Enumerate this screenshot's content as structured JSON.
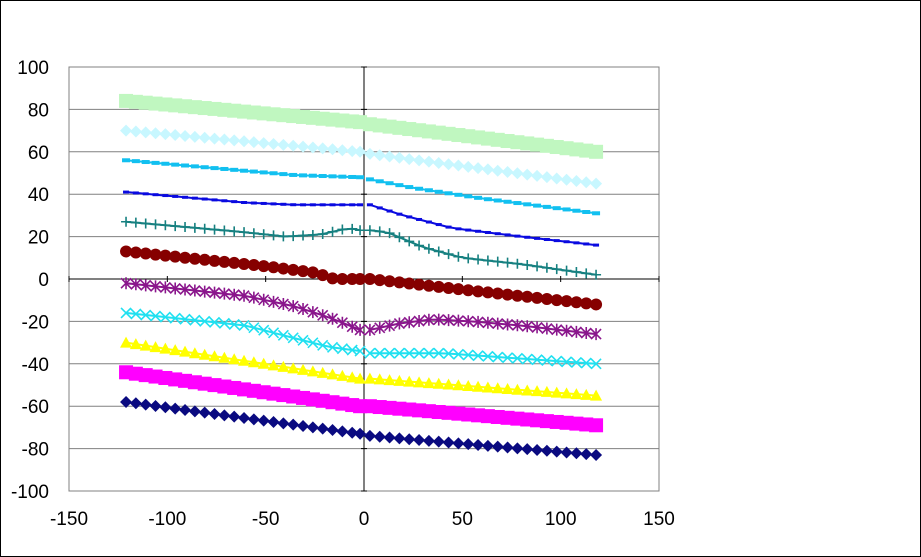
{
  "chart_data": {
    "type": "scatter",
    "title": "",
    "xlabel": "",
    "ylabel": "",
    "xlim": [
      -150,
      150
    ],
    "ylim": [
      -100,
      100
    ],
    "x_ticks": [
      "-150",
      "-100",
      "-50",
      "0",
      "50",
      "100",
      "150"
    ],
    "y_ticks": [
      "100",
      "80",
      "60",
      "40",
      "20",
      "0",
      "-20",
      "-40",
      "-60",
      "-80",
      "-100"
    ],
    "grid": {
      "horizontal": true,
      "vertical": false
    },
    "legend": "none",
    "series": [
      {
        "color": "#c0f7c0",
        "marker": "square-large",
        "left": [
          [
            -121,
            84
          ],
          [
            -2,
            74
          ]
        ],
        "right": [
          [
            3,
            73
          ],
          [
            118,
            60
          ]
        ]
      },
      {
        "color": "#c8f7ff",
        "marker": "diamond",
        "left": [
          [
            -121,
            70
          ],
          [
            -2,
            60
          ]
        ],
        "right": [
          [
            3,
            59
          ],
          [
            118,
            45
          ]
        ]
      },
      {
        "color": "#12c0f0",
        "marker": "dash",
        "left": [
          [
            -121,
            56
          ],
          [
            -60,
            51
          ],
          [
            -35,
            49
          ],
          [
            -2,
            48
          ]
        ],
        "right": [
          [
            3,
            47
          ],
          [
            25,
            43
          ],
          [
            60,
            38
          ],
          [
            118,
            31
          ]
        ]
      },
      {
        "color": "#0a0ae0",
        "marker": "small-dash",
        "left": [
          [
            -121,
            41
          ],
          [
            -60,
            36
          ],
          [
            -35,
            35
          ],
          [
            -2,
            35
          ]
        ],
        "right": [
          [
            3,
            35
          ],
          [
            20,
            30
          ],
          [
            45,
            24
          ],
          [
            80,
            20
          ],
          [
            118,
            16
          ]
        ]
      },
      {
        "color": "#168080",
        "marker": "plus",
        "left": [
          [
            -121,
            27
          ],
          [
            -60,
            22
          ],
          [
            -40,
            20
          ],
          [
            -22,
            21
          ],
          [
            -8,
            24
          ],
          [
            -2,
            23
          ]
        ],
        "right": [
          [
            3,
            23
          ],
          [
            12,
            22
          ],
          [
            30,
            15
          ],
          [
            50,
            10
          ],
          [
            80,
            7
          ],
          [
            118,
            2
          ]
        ]
      },
      {
        "color": "#860000",
        "marker": "circle",
        "left": [
          [
            -121,
            13
          ],
          [
            -50,
            6
          ],
          [
            -25,
            3
          ],
          [
            -15,
            0
          ],
          [
            -2,
            0
          ]
        ],
        "right": [
          [
            3,
            0
          ],
          [
            50,
            -5
          ],
          [
            118,
            -12
          ]
        ]
      },
      {
        "color": "#8a168c",
        "marker": "asterisk",
        "left": [
          [
            -121,
            -2
          ],
          [
            -60,
            -8
          ],
          [
            -35,
            -13
          ],
          [
            -18,
            -18
          ],
          [
            -2,
            -24
          ]
        ],
        "right": [
          [
            3,
            -24
          ],
          [
            18,
            -21
          ],
          [
            35,
            -19
          ],
          [
            55,
            -20
          ],
          [
            80,
            -22
          ],
          [
            118,
            -26
          ]
        ]
      },
      {
        "color": "#20e0f0",
        "marker": "x",
        "left": [
          [
            -121,
            -16
          ],
          [
            -60,
            -22
          ],
          [
            -35,
            -28
          ],
          [
            -18,
            -32
          ],
          [
            -2,
            -34
          ]
        ],
        "right": [
          [
            3,
            -35
          ],
          [
            40,
            -35
          ],
          [
            118,
            -40
          ]
        ]
      },
      {
        "color": "#ffff00",
        "marker": "triangle",
        "left": [
          [
            -121,
            -30
          ],
          [
            -2,
            -47
          ]
        ],
        "right": [
          [
            3,
            -47
          ],
          [
            118,
            -55
          ]
        ]
      },
      {
        "color": "#ff00ff",
        "marker": "square-large",
        "left": [
          [
            -121,
            -44
          ],
          [
            -2,
            -60
          ]
        ],
        "right": [
          [
            3,
            -60
          ],
          [
            118,
            -69
          ]
        ]
      },
      {
        "color": "#0a0a80",
        "marker": "diamond",
        "left": [
          [
            -121,
            -58
          ],
          [
            -2,
            -73
          ]
        ],
        "right": [
          [
            3,
            -74
          ],
          [
            118,
            -83
          ]
        ]
      }
    ]
  }
}
